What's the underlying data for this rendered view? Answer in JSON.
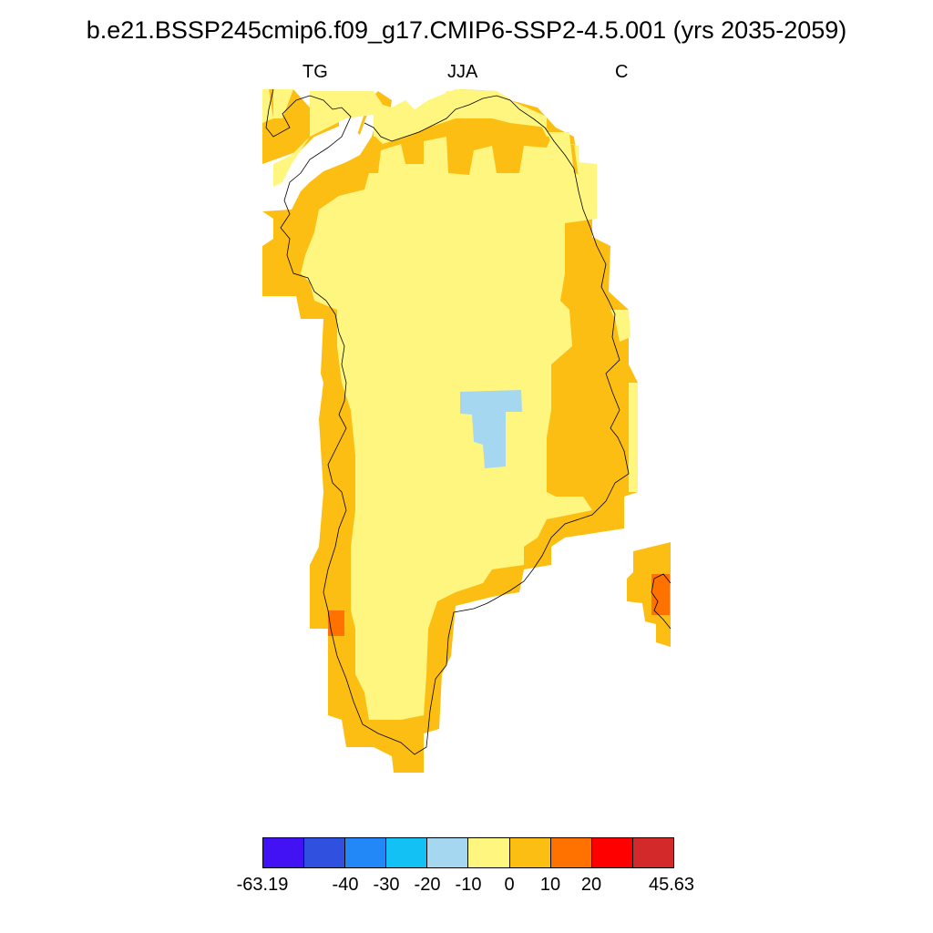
{
  "title": "b.e21.BSSP245cmip6.f09_g17.CMIP6-SSP2-4.5.001 (yrs 2035-2059)",
  "subtitle_left": "TG",
  "subtitle_center": "JJA",
  "subtitle_right": "C",
  "legend": {
    "colors": [
      "#4212f5",
      "#3050e0",
      "#2388f7",
      "#13c1f5",
      "#a5d7f1",
      "#fff680",
      "#fdbe14",
      "#ff7200",
      "#ff0000",
      "#d4292b"
    ],
    "labels": [
      "-63.19",
      "-40",
      "-30",
      "-20",
      "-10",
      "0",
      "10",
      "20",
      "45.63"
    ]
  }
}
